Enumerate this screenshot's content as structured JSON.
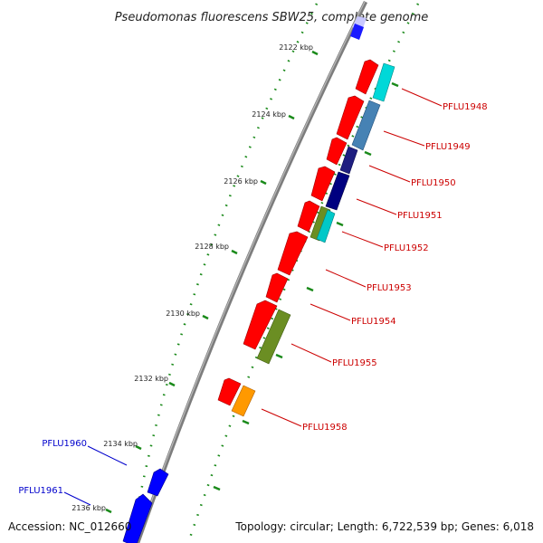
{
  "title": "Pseudomonas fluorescens SBW25, complete genome",
  "footer": {
    "accession": "Accession: NC_012660",
    "info": "Topology: circular; Length: 6,722,539 bp; Genes: 6,018"
  },
  "colors": {
    "backbone": "#808080",
    "tick": "#1a8a1a",
    "label_red": "#cc0000",
    "label_blue": "#0000cc"
  },
  "kbp_labels": [
    "2122 kbp",
    "2124 kbp",
    "2126 kbp",
    "2128 kbp",
    "2130 kbp",
    "2132 kbp",
    "2134 kbp",
    "2136 kbp"
  ],
  "gene_labels_right": [
    "PFLU1948",
    "PFLU1949",
    "PFLU1950",
    "PFLU1951",
    "PFLU1952",
    "PFLU1953",
    "PFLU1954",
    "PFLU1955",
    "PFLU1958"
  ],
  "gene_labels_left": [
    "PFLU1960",
    "PFLU1961"
  ]
}
